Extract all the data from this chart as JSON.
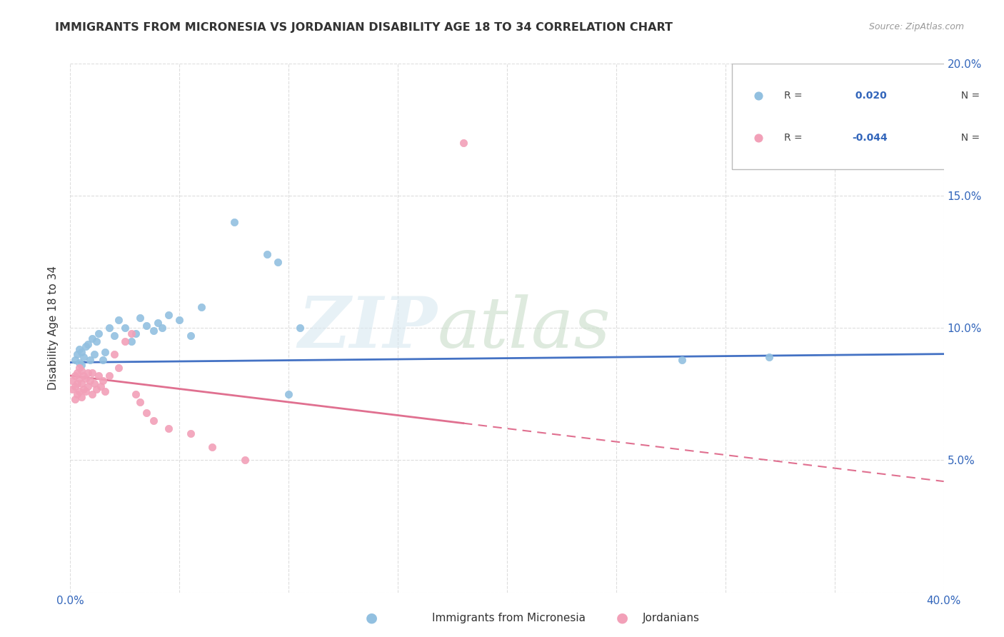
{
  "title": "IMMIGRANTS FROM MICRONESIA VS JORDANIAN DISABILITY AGE 18 TO 34 CORRELATION CHART",
  "source": "Source: ZipAtlas.com",
  "ylabel": "Disability Age 18 to 34",
  "xlim": [
    0.0,
    0.4
  ],
  "ylim": [
    0.0,
    0.2
  ],
  "xticks": [
    0.0,
    0.05,
    0.1,
    0.15,
    0.2,
    0.25,
    0.3,
    0.35,
    0.4
  ],
  "xtick_labels": [
    "0.0%",
    "",
    "",
    "",
    "",
    "",
    "",
    "",
    "40.0%"
  ],
  "yticks": [
    0.0,
    0.05,
    0.1,
    0.15,
    0.2
  ],
  "ytick_labels_right": [
    "",
    "5.0%",
    "10.0%",
    "15.0%",
    "20.0%"
  ],
  "blue_color": "#92C0E0",
  "pink_color": "#F2A0B8",
  "blue_line_color": "#4472C4",
  "pink_line_color": "#E07090",
  "blue_scatter_x": [
    0.002,
    0.003,
    0.004,
    0.004,
    0.005,
    0.005,
    0.006,
    0.007,
    0.008,
    0.009,
    0.01,
    0.011,
    0.012,
    0.013,
    0.015,
    0.016,
    0.018,
    0.02,
    0.022,
    0.025,
    0.028,
    0.03,
    0.032,
    0.035,
    0.038,
    0.04,
    0.042,
    0.045,
    0.05,
    0.055,
    0.06,
    0.075,
    0.09,
    0.095,
    0.1,
    0.105,
    0.28,
    0.32
  ],
  "blue_scatter_y": [
    0.088,
    0.09,
    0.087,
    0.092,
    0.086,
    0.091,
    0.089,
    0.093,
    0.094,
    0.088,
    0.096,
    0.09,
    0.095,
    0.098,
    0.088,
    0.091,
    0.1,
    0.097,
    0.103,
    0.1,
    0.095,
    0.098,
    0.104,
    0.101,
    0.099,
    0.102,
    0.1,
    0.105,
    0.103,
    0.097,
    0.108,
    0.14,
    0.128,
    0.125,
    0.075,
    0.1,
    0.088,
    0.089
  ],
  "pink_scatter_x": [
    0.001,
    0.001,
    0.002,
    0.002,
    0.002,
    0.003,
    0.003,
    0.003,
    0.004,
    0.004,
    0.004,
    0.005,
    0.005,
    0.005,
    0.006,
    0.006,
    0.007,
    0.007,
    0.008,
    0.008,
    0.009,
    0.01,
    0.01,
    0.011,
    0.012,
    0.013,
    0.014,
    0.015,
    0.016,
    0.018,
    0.02,
    0.022,
    0.025,
    0.028,
    0.03,
    0.032,
    0.035,
    0.038,
    0.045,
    0.055,
    0.065,
    0.08,
    0.18
  ],
  "pink_scatter_y": [
    0.077,
    0.08,
    0.073,
    0.078,
    0.082,
    0.075,
    0.079,
    0.083,
    0.076,
    0.081,
    0.085,
    0.074,
    0.079,
    0.084,
    0.077,
    0.082,
    0.076,
    0.081,
    0.078,
    0.083,
    0.08,
    0.075,
    0.083,
    0.079,
    0.077,
    0.082,
    0.078,
    0.08,
    0.076,
    0.082,
    0.09,
    0.085,
    0.095,
    0.098,
    0.075,
    0.072,
    0.068,
    0.065,
    0.062,
    0.06,
    0.055,
    0.05,
    0.17
  ],
  "blue_trend_slope": 0.008,
  "blue_trend_intercept": 0.087,
  "pink_trend_slope": -0.1,
  "pink_trend_intercept": 0.082
}
